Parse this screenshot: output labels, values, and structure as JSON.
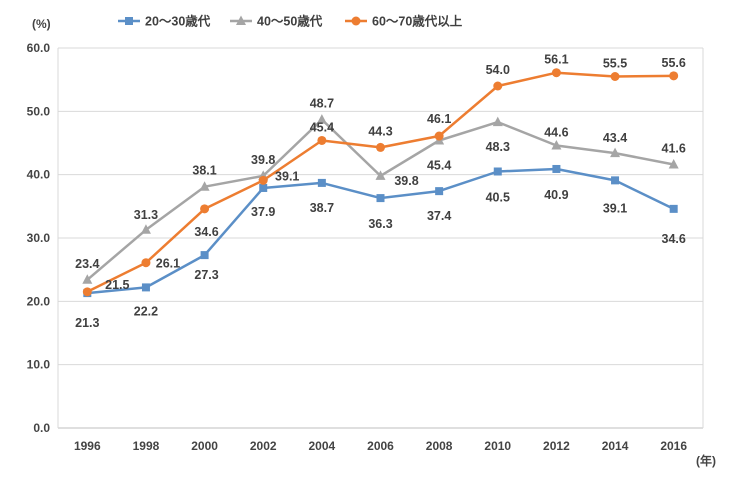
{
  "chart_data": {
    "type": "line",
    "title": "",
    "ylabel": "(%)",
    "xlabel": "(年)",
    "ylim": [
      0,
      60
    ],
    "yticks": [
      "0.0",
      "10.0",
      "20.0",
      "30.0",
      "40.0",
      "50.0",
      "60.0"
    ],
    "categories": [
      "1996",
      "1998",
      "2000",
      "2002",
      "2004",
      "2006",
      "2008",
      "2010",
      "2012",
      "2014",
      "2016"
    ],
    "grid": true,
    "legend_position": "top",
    "series": [
      {
        "name": "20〜30歳代",
        "color": "#5b8fc7",
        "marker": "square",
        "values": [
          21.3,
          22.2,
          27.3,
          37.9,
          38.7,
          36.3,
          37.4,
          40.5,
          40.9,
          39.1,
          34.6
        ],
        "labels": [
          "21.3",
          "22.2",
          "27.3",
          "37.9",
          "38.7",
          "36.3",
          "37.4",
          "40.5",
          "40.9",
          "39.1",
          "34.6"
        ]
      },
      {
        "name": "40〜50歳代",
        "color": "#a5a5a5",
        "marker": "triangle",
        "values": [
          23.4,
          31.3,
          38.1,
          39.8,
          48.7,
          39.8,
          45.4,
          48.3,
          44.6,
          43.4,
          41.6
        ],
        "labels": [
          "23.4",
          "31.3",
          "38.1",
          "39.8",
          "48.7",
          "39.8",
          "45.4",
          "48.3",
          "44.6",
          "43.4",
          "41.6"
        ]
      },
      {
        "name": "60〜70歳代以上",
        "color": "#ed7d31",
        "marker": "circle",
        "values": [
          21.5,
          26.1,
          34.6,
          39.1,
          45.4,
          44.3,
          46.1,
          54.0,
          56.1,
          55.5,
          55.6
        ],
        "labels": [
          "21.5",
          "26.1",
          "34.6",
          "39.1",
          "45.4",
          "44.3",
          "46.1",
          "54.0",
          "56.1",
          "55.5",
          "55.6"
        ]
      }
    ]
  }
}
